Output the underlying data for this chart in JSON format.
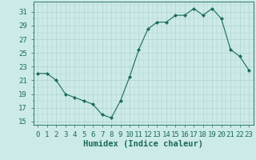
{
  "title": "",
  "xlabel": "Humidex (Indice chaleur)",
  "ylabel": "",
  "x": [
    0,
    1,
    2,
    3,
    4,
    5,
    6,
    7,
    8,
    9,
    10,
    11,
    12,
    13,
    14,
    15,
    16,
    17,
    18,
    19,
    20,
    21,
    22,
    23
  ],
  "y": [
    22,
    22,
    21,
    19,
    18.5,
    18,
    17.5,
    16,
    15.5,
    18,
    21.5,
    25.5,
    28.5,
    29.5,
    29.5,
    30.5,
    30.5,
    31.5,
    30.5,
    31.5,
    30,
    25.5,
    24.5,
    22.5
  ],
  "line_color": "#1a6b5a",
  "marker": "D",
  "marker_size": 2.2,
  "bg_color": "#cceae7",
  "grid_color": "#b0d4d0",
  "tick_color": "#1a6b5a",
  "ylim": [
    14.5,
    32.5
  ],
  "yticks": [
    15,
    17,
    19,
    21,
    23,
    25,
    27,
    29,
    31
  ],
  "xlim": [
    -0.5,
    23.5
  ],
  "xlabel_fontsize": 7.5,
  "tick_fontsize": 6.5
}
